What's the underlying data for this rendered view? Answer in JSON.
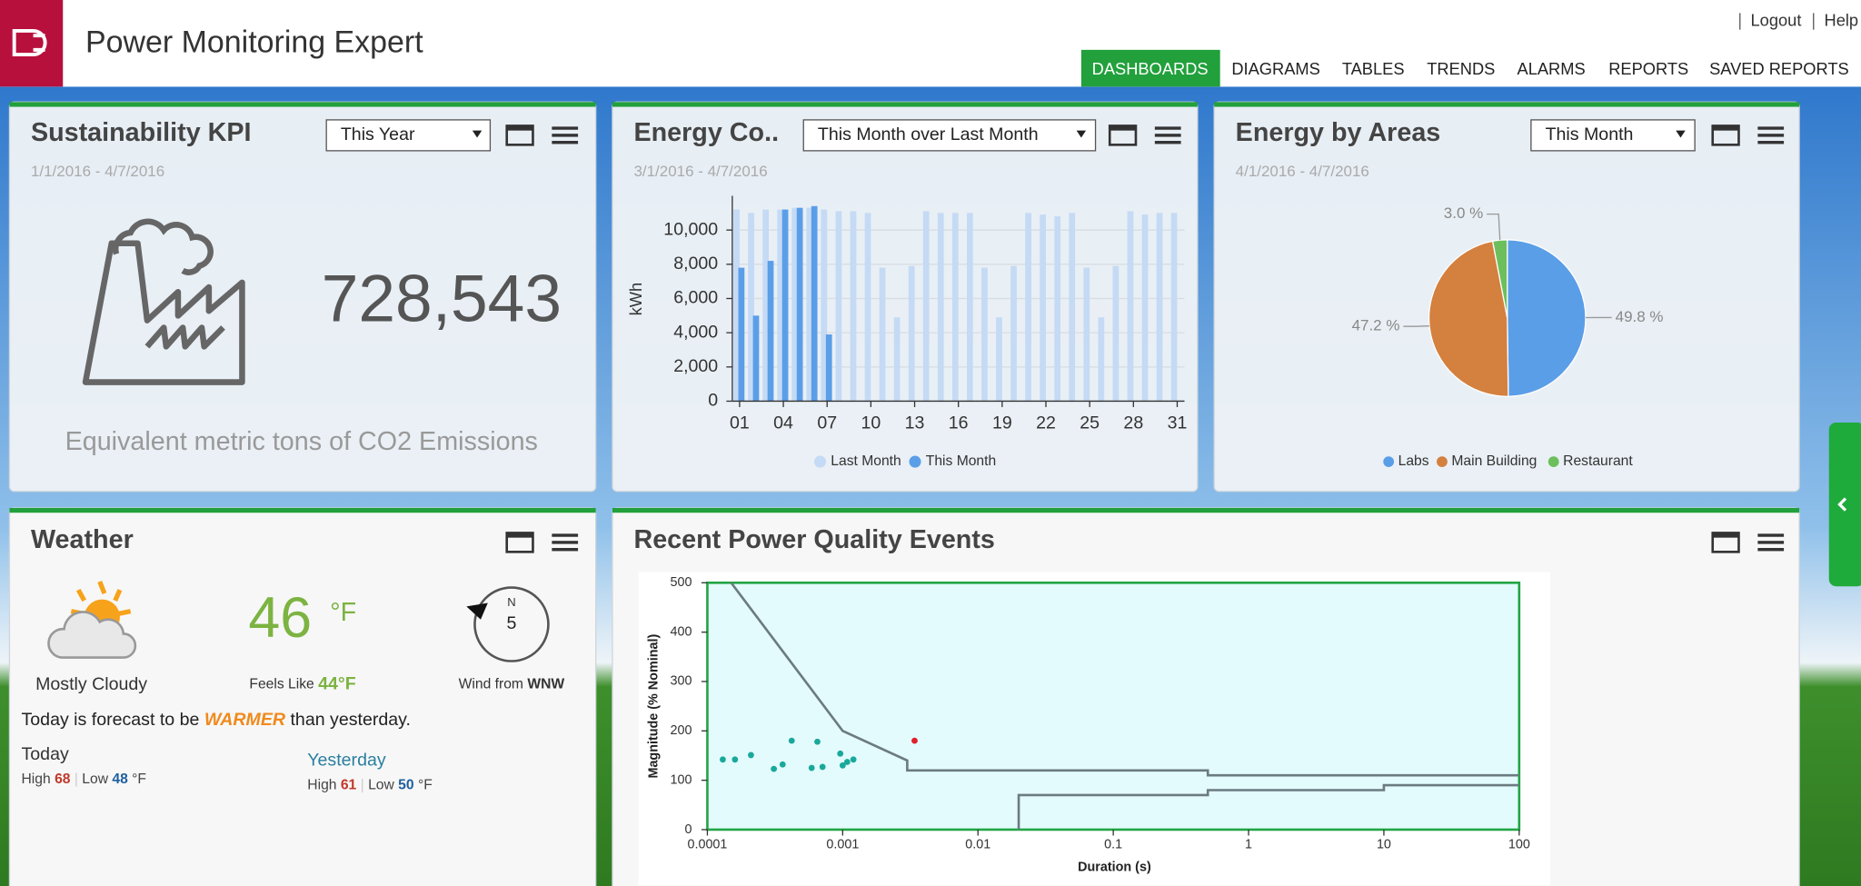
{
  "header": {
    "title": "Power Monitoring Expert",
    "links": [
      "Logout",
      "Help"
    ]
  },
  "nav": [
    "DASHBOARDS",
    "DIAGRAMS",
    "TABLES",
    "TRENDS",
    "ALARMS",
    "REPORTS",
    "SAVED REPORTS"
  ],
  "kpi": {
    "title": "Sustainability KPI",
    "period": "This Year",
    "dates": "1/1/2016 - 4/7/2016",
    "value": "728,543",
    "caption": "Equivalent metric tons of CO2 Emissions"
  },
  "energy": {
    "title": "Energy Co..",
    "period": "This Month over Last Month",
    "dates": "3/1/2016 - 4/7/2016",
    "chart": {
      "type": "bar",
      "ylabel": "kWh",
      "categories": [
        "01",
        null,
        null,
        "04",
        null,
        null,
        "07",
        null,
        null,
        "10",
        null,
        null,
        "13",
        null,
        null,
        "16",
        null,
        null,
        "19",
        null,
        null,
        "22",
        null,
        null,
        "25",
        null,
        null,
        "28",
        null,
        null,
        "31"
      ],
      "series": [
        {
          "name": "Last Month",
          "color": "#c5daf4",
          "values": [
            11200,
            11000,
            11200,
            11200,
            11300,
            11300,
            11200,
            11100,
            11100,
            11000,
            7800,
            4900,
            7900,
            11100,
            11000,
            11000,
            11000,
            7800,
            4900,
            7900,
            11000,
            10900,
            10800,
            11000,
            7800,
            4900,
            7900,
            11100,
            10900,
            11000,
            11000
          ]
        },
        {
          "name": "This Month",
          "color": "#5b9ee8",
          "values": [
            7800,
            5000,
            8200,
            11200,
            11300,
            11400,
            3900,
            null,
            null,
            null,
            null,
            null,
            null,
            null,
            null,
            null,
            null,
            null,
            null,
            null,
            null,
            null,
            null,
            null,
            null,
            null,
            null,
            null,
            null,
            null,
            null
          ]
        }
      ],
      "ylim": [
        0,
        12000
      ],
      "yticks": [
        0,
        {
          "value": 2000,
          "label": "2,000"
        },
        {
          "value": 4000,
          "label": "4,000"
        },
        {
          "value": 6000,
          "label": "6,000"
        },
        {
          "value": 8000,
          "label": "8,000"
        },
        {
          "value": 10000,
          "label": "10,000"
        }
      ],
      "grid": true
    }
  },
  "areas": {
    "title": "Energy by Areas",
    "period": "This Month",
    "dates": "4/1/2016 - 4/7/2016",
    "chart": {
      "type": "pie",
      "categories": [
        "Labs",
        "Main Building",
        "Restaurant"
      ],
      "values": [
        49.8,
        47.2,
        3.0
      ],
      "value_labels": [
        "49.8 %",
        "47.2 %",
        "3.0 %"
      ],
      "colors": [
        "#5b9ee8",
        "#d4803e",
        "#6cbf5c"
      ]
    }
  },
  "weather": {
    "title": "Weather",
    "condition": "Mostly Cloudy",
    "temperature": 46,
    "unit": "°F",
    "feels_like_label": "Feels Like",
    "feels_like": 44,
    "feels_like_unit": "°F",
    "compass_north": "N",
    "wind_speed": 5,
    "wind_label": "Wind from",
    "wind_direction": "WNW",
    "forecast": [
      "Today is forecast to be",
      "WARMER",
      "than yesterday."
    ],
    "today": {
      "label": "Today",
      "high_label": "High",
      "high": 68,
      "low_label": "Low",
      "low": 48,
      "unit": "°F"
    },
    "yesterday": {
      "label": "Yesterday",
      "high_label": "High",
      "high": 61,
      "low_label": "Low",
      "low": 50,
      "unit": "°F"
    }
  },
  "events": {
    "title": "Recent Power Quality Events",
    "chart": {
      "type": "scatter",
      "xlabel": "Duration (s)",
      "ylabel": "Magnitude (% Nominal)",
      "log_x": true,
      "xlim": [
        0.0001,
        100
      ],
      "xticks": [
        0.0001,
        0.001,
        0.01,
        0.1,
        1,
        10,
        100
      ],
      "ylim": [
        0,
        500
      ],
      "yticks": [
        0,
        100,
        200,
        300,
        400,
        500
      ],
      "series": [
        {
          "color": "#1aa89a",
          "x": [
            0.00013,
            0.00016,
            0.00021,
            0.00031,
            0.00036,
            0.00042,
            0.00059,
            0.00065,
            0.00071,
            0.00096,
            0.001,
            0.00108,
            0.0012
          ],
          "values": [
            142,
            142,
            151,
            123,
            132,
            180,
            125,
            178,
            127,
            154,
            130,
            137,
            142
          ]
        },
        {
          "color": "#e0202a",
          "x": [
            0.0034
          ],
          "values": [
            180
          ]
        }
      ],
      "curves": [
        {
          "color": "#6b7b80",
          "x": [
            0.00015,
            0.001,
            0.003,
            0.003,
            0.5,
            0.5,
            100
          ],
          "values": [
            500,
            200,
            140,
            120,
            120,
            110,
            110
          ]
        },
        {
          "color": "#6b7b80",
          "x": [
            0.02,
            0.02,
            0.5,
            0.5,
            10,
            10,
            100
          ],
          "values": [
            0,
            70,
            70,
            80,
            80,
            90,
            90
          ]
        }
      ]
    }
  }
}
